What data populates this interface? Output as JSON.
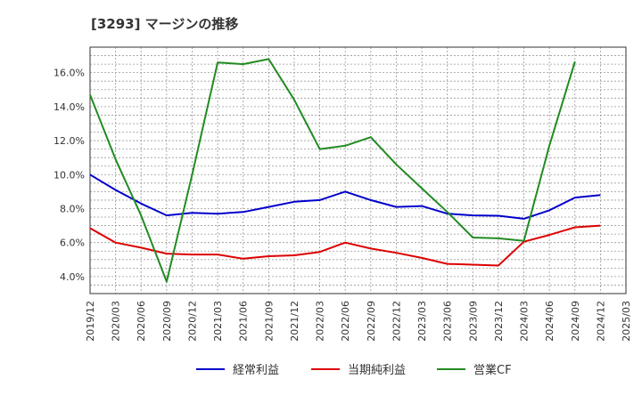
{
  "chart_data": {
    "type": "line",
    "title": "[3293]  マージンの推移",
    "x": [
      "2019/12",
      "2020/03",
      "2020/06",
      "2020/09",
      "2020/12",
      "2021/03",
      "2021/06",
      "2021/09",
      "2021/12",
      "2022/03",
      "2022/06",
      "2022/09",
      "2022/12",
      "2023/03",
      "2023/06",
      "2023/09",
      "2023/12",
      "2024/03",
      "2024/06",
      "2024/09",
      "2024/12",
      "2025/03"
    ],
    "y_ticks": [
      "4.0%",
      "6.0%",
      "8.0%",
      "10.0%",
      "12.0%",
      "14.0%",
      "16.0%"
    ],
    "ylim": [
      3.0,
      17.5
    ],
    "grid": true,
    "legend_position": "bottom",
    "series": [
      {
        "name": "経常利益",
        "color": "#0000cc",
        "values": [
          10.0,
          9.1,
          8.3,
          7.6,
          7.75,
          7.7,
          7.8,
          8.1,
          8.4,
          8.5,
          9.0,
          8.5,
          8.1,
          8.15,
          7.7,
          7.6,
          7.58,
          7.4,
          7.9,
          8.65,
          8.8,
          null
        ]
      },
      {
        "name": "当期純利益",
        "color": "#dd0000",
        "values": [
          6.85,
          6.0,
          5.7,
          5.35,
          5.3,
          5.3,
          5.05,
          5.2,
          5.25,
          5.45,
          6.0,
          5.65,
          5.4,
          5.1,
          4.75,
          4.7,
          4.65,
          6.05,
          6.45,
          6.9,
          7.0,
          null
        ]
      },
      {
        "name": "営業CF",
        "color": "#228b22",
        "values": [
          14.7,
          10.9,
          7.6,
          3.7,
          10.0,
          16.6,
          16.5,
          16.8,
          14.4,
          11.5,
          11.7,
          12.2,
          10.6,
          9.2,
          7.8,
          6.3,
          6.25,
          6.1,
          11.7,
          16.65,
          null,
          null
        ]
      }
    ]
  }
}
